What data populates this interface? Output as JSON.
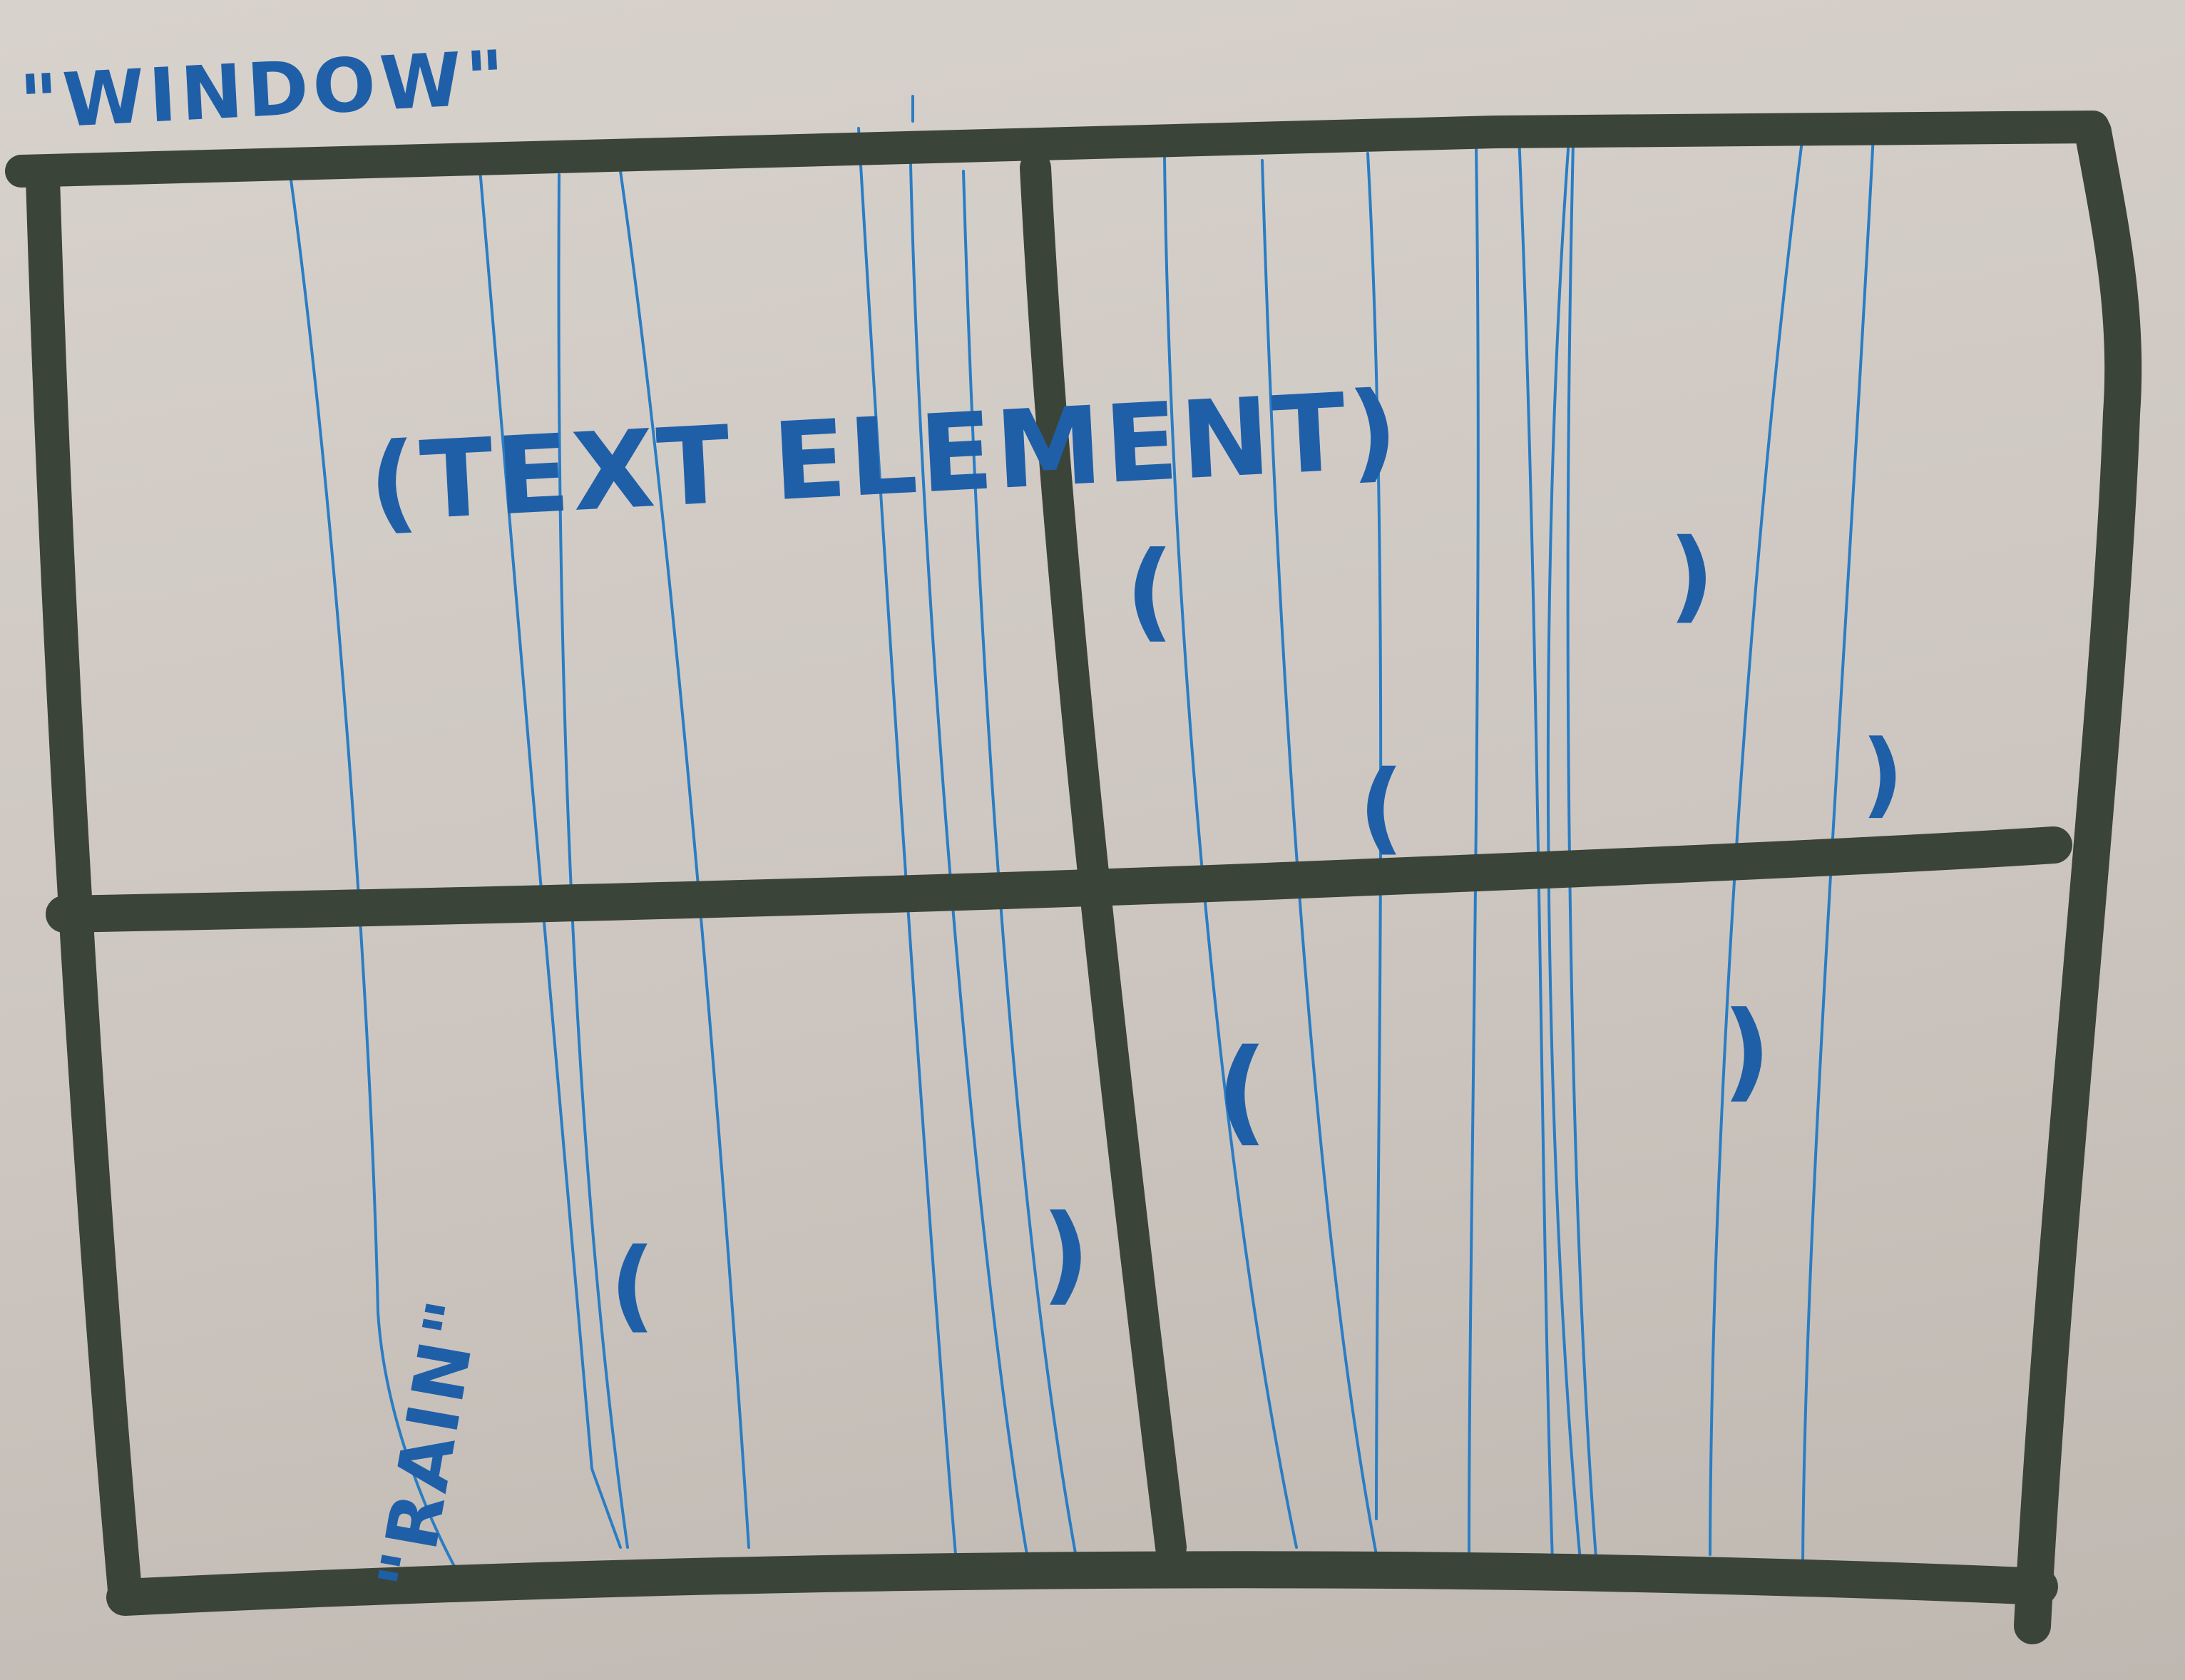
{
  "labels": {
    "window": "\"WINDOW\"",
    "text_element": "(TEXT ELEMENT)",
    "rain": "\"RAIN\""
  },
  "drops": [
    "(",
    ")",
    "(",
    ")",
    "(",
    ")",
    "(",
    ")",
    "(",
    ")"
  ],
  "colors": {
    "frame": "#3a4438",
    "ink": "#1f5fa8",
    "rain": "#2a7dc4",
    "paper": "#d2cbc5"
  },
  "icons": {
    "window_frame": "window-frame-icon",
    "rain_line": "rain-line-icon",
    "raindrop": "raindrop-icon"
  }
}
